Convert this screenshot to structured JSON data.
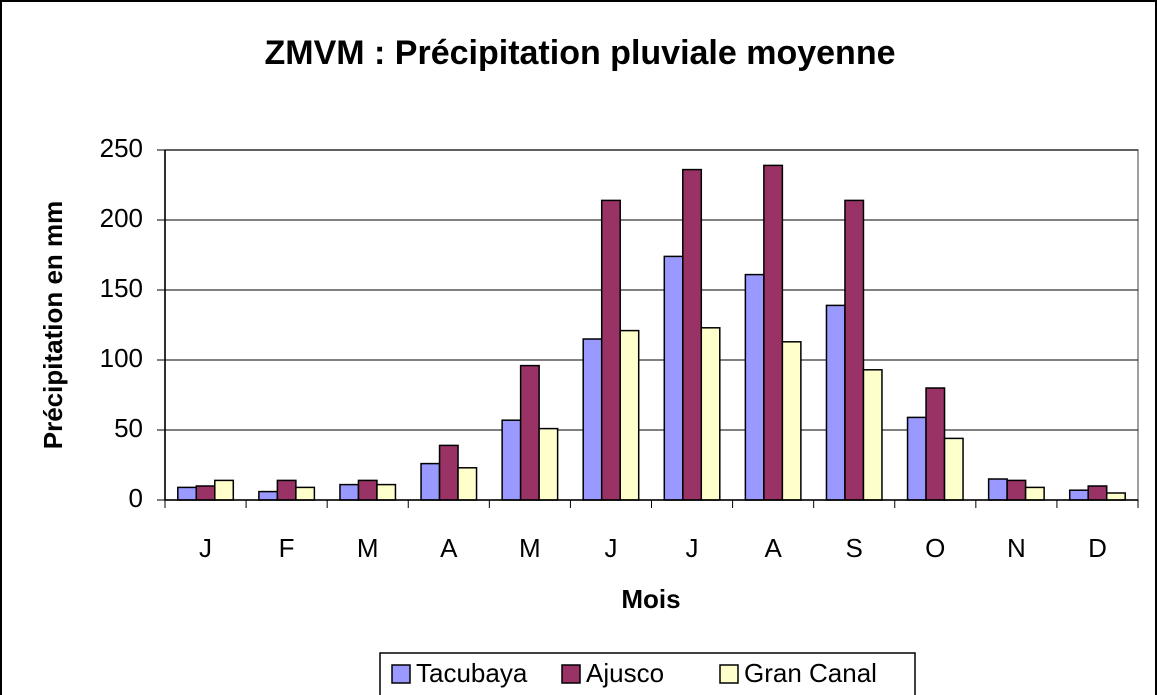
{
  "chart_data": {
    "type": "bar",
    "title": "ZMVM : Précipitation pluviale moyenne",
    "x_label": "Mois",
    "y_label": "Précipitation en mm",
    "categories": [
      "J",
      "F",
      "M",
      "A",
      "M",
      "J",
      "J",
      "A",
      "S",
      "O",
      "N",
      "D"
    ],
    "series": [
      {
        "name": "Tacubaya",
        "color": "#9999ff",
        "values": [
          9,
          6,
          11,
          26,
          57,
          115,
          174,
          161,
          139,
          59,
          15,
          7
        ]
      },
      {
        "name": "Ajusco",
        "color": "#993366",
        "values": [
          10,
          14,
          14,
          39,
          96,
          214,
          236,
          239,
          214,
          80,
          14,
          10
        ]
      },
      {
        "name": "Gran Canal",
        "color": "#ffffcc",
        "values": [
          14,
          9,
          11,
          23,
          51,
          121,
          123,
          113,
          93,
          44,
          9,
          5
        ]
      }
    ],
    "ylim": [
      0,
      250
    ],
    "yticks": [
      0,
      50,
      100,
      150,
      200,
      250
    ],
    "grid": true,
    "legend": "bottom"
  }
}
